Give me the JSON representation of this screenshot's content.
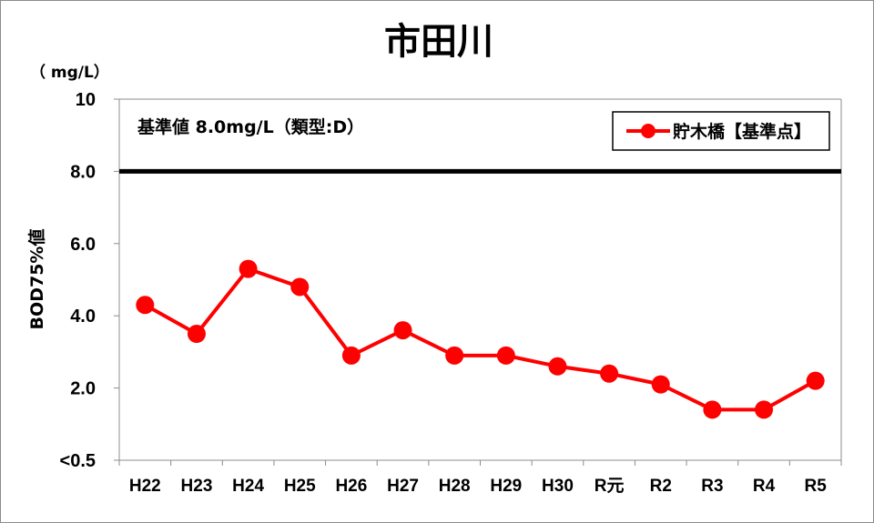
{
  "chart_data": {
    "type": "line",
    "title": "市田川",
    "unit_label": "（ mg/L）",
    "ylabel": "BOD75%値",
    "y_tick_labels": [
      "<0.5",
      "2.0",
      "4.0",
      "6.0",
      "8.0",
      "10"
    ],
    "y_ticks": [
      0,
      2,
      4,
      6,
      8,
      10
    ],
    "ylim": [
      0,
      10
    ],
    "categories": [
      "H22",
      "H23",
      "H24",
      "H25",
      "H26",
      "H27",
      "H28",
      "H29",
      "H30",
      "R元",
      "R2",
      "R3",
      "R4",
      "R5"
    ],
    "series": [
      {
        "name": "貯木橋【基準点】",
        "color": "#ff0000",
        "values": [
          4.3,
          3.5,
          5.3,
          4.8,
          2.9,
          3.6,
          2.9,
          2.9,
          2.6,
          2.4,
          2.1,
          1.4,
          1.4,
          2.2
        ]
      }
    ],
    "reference_line": {
      "value": 8.0,
      "color": "#000000"
    },
    "annotation": "基準値 8.0mg/L（類型:D）",
    "legend_position": "top-right",
    "grid": false
  }
}
